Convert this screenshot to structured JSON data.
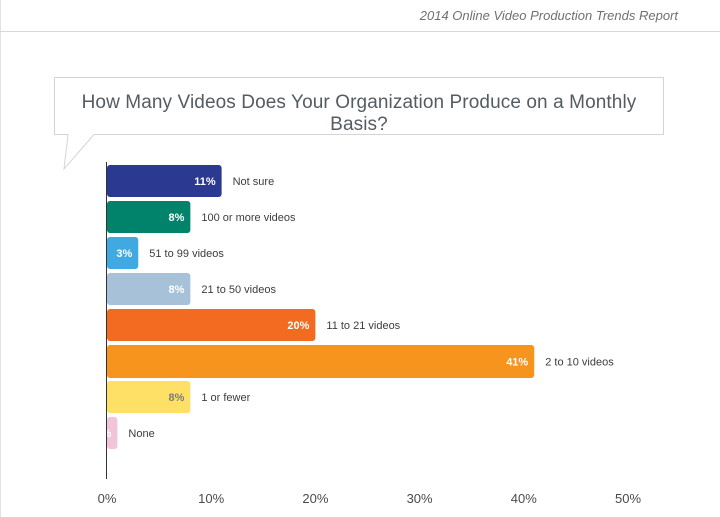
{
  "header": {
    "report_title": "2014 Online Video Production Trends Report"
  },
  "chart_data": {
    "type": "bar",
    "orientation": "horizontal",
    "title": "How Many Videos Does Your Organization Produce on a Monthly Basis?",
    "categories": [
      "Not sure",
      "100 or more videos",
      "51 to 99 videos",
      "21 to 50 videos",
      "11 to 21 videos",
      "2 to 10 videos",
      "1 or fewer",
      "None"
    ],
    "values": [
      11,
      8,
      3,
      8,
      20,
      41,
      8,
      1
    ],
    "value_labels": [
      "11%",
      "8%",
      "3%",
      "8%",
      "20%",
      "41%",
      "8%",
      "1%"
    ],
    "colors": [
      "#2b3990",
      "#00826b",
      "#41a9e1",
      "#a7c1d9",
      "#f26b21",
      "#f7941d",
      "#ffe066",
      "#f2c4d8"
    ],
    "dark_value_text": [
      false,
      false,
      false,
      false,
      false,
      false,
      true,
      false
    ],
    "xlim": [
      0,
      50
    ],
    "xticks": [
      "0%",
      "10%",
      "20%",
      "30%",
      "40%",
      "50%"
    ],
    "xlabel": "",
    "ylabel": "",
    "grid": false
  }
}
